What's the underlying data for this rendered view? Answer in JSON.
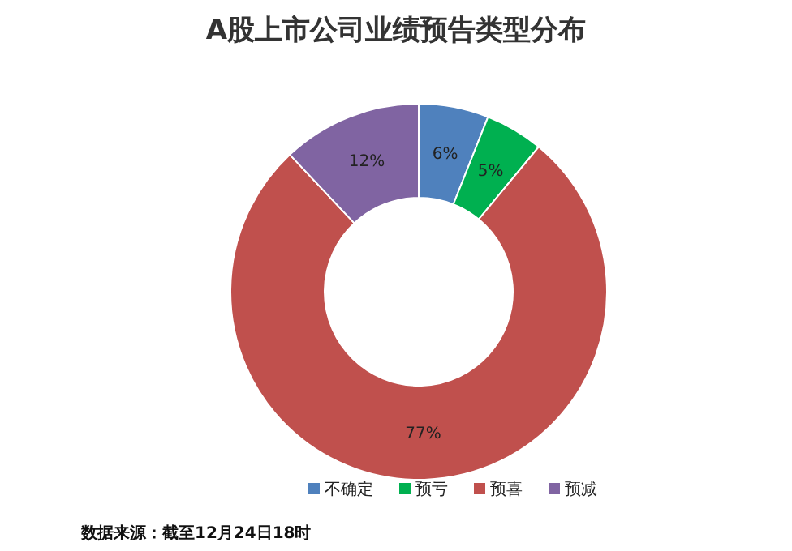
{
  "chart_data": {
    "type": "donut",
    "title": "A股上市公司业绩预告类型分布",
    "categories": [
      "不确定",
      "预亏",
      "预喜",
      "预减"
    ],
    "values": [
      6,
      5,
      77,
      12
    ],
    "value_labels": [
      "6%",
      "5%",
      "77%",
      "12%"
    ],
    "colors": [
      "#4f81bd",
      "#00b050",
      "#c0504d",
      "#8064a2"
    ],
    "legend": "bottom",
    "annotations": [
      "数据来源：截至12月24日18时"
    ]
  }
}
